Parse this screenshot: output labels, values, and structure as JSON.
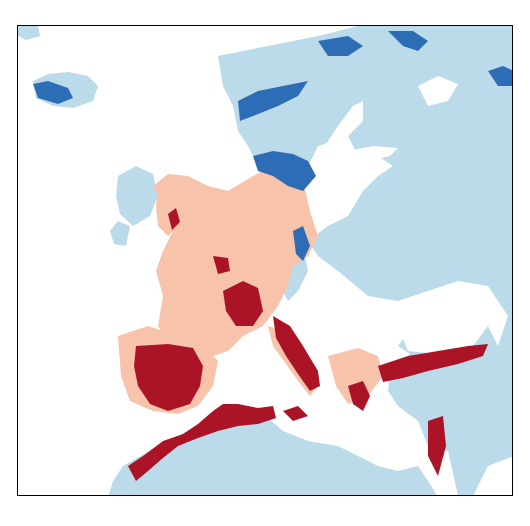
{
  "map": {
    "colors": {
      "background": "#ffffff",
      "frame": "#000000",
      "class_light_blue": "#bcdbea",
      "class_dark_blue": "#2d6db5",
      "class_light_pink": "#f7c3aa",
      "class_dark_red": "#ab1427"
    },
    "classes": [
      {
        "id": "light_blue",
        "color": "#bcdbea"
      },
      {
        "id": "dark_blue",
        "color": "#2d6db5"
      },
      {
        "id": "light_pink",
        "color": "#f7c3aa"
      },
      {
        "id": "dark_red",
        "color": "#ab1427"
      }
    ]
  }
}
